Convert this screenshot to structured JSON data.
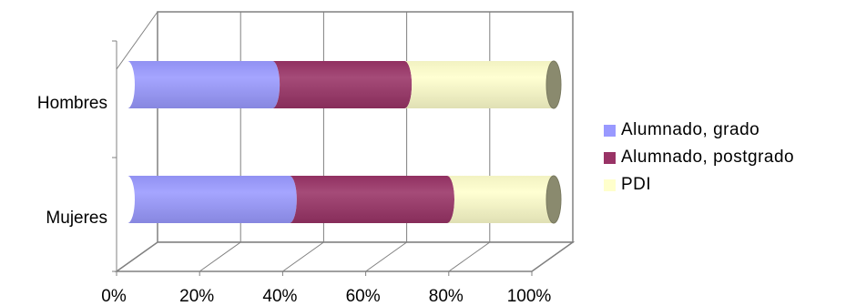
{
  "chart_data": {
    "type": "bar",
    "orientation": "horizontal",
    "stacked": "100%",
    "style": "3d-cylinder",
    "categories": [
      "Hombres",
      "Mujeres"
    ],
    "series": [
      {
        "name": "Alumnado, grado",
        "values": [
          34,
          38
        ],
        "color": "#9999ff"
      },
      {
        "name": "Alumnado, postgrado",
        "values": [
          31,
          37
        ],
        "color": "#993366"
      },
      {
        "name": "PDI",
        "values": [
          35,
          25
        ],
        "color": "#ffffcc"
      }
    ],
    "xlim": [
      0,
      100
    ],
    "xticks": [
      "0%",
      "20%",
      "40%",
      "60%",
      "80%",
      "100%"
    ],
    "grid": true,
    "legend_position": "right"
  }
}
